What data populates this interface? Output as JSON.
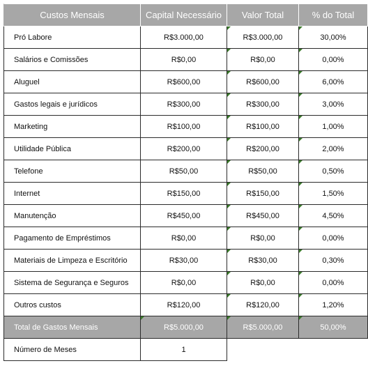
{
  "headers": [
    "Custos Mensais",
    "Capital Necessário",
    "Valor Total",
    "% do Total"
  ],
  "rows": [
    {
      "label": "Pró Labore",
      "capital": "R$3.000,00",
      "total": "R$3.000,00",
      "pct": "30,00%"
    },
    {
      "label": "Salários e Comissões",
      "capital": "R$0,00",
      "total": "R$0,00",
      "pct": "0,00%"
    },
    {
      "label": "Aluguel",
      "capital": "R$600,00",
      "total": "R$600,00",
      "pct": "6,00%"
    },
    {
      "label": "Gastos legais e jurídicos",
      "capital": "R$300,00",
      "total": "R$300,00",
      "pct": "3,00%"
    },
    {
      "label": "Marketing",
      "capital": "R$100,00",
      "total": "R$100,00",
      "pct": "1,00%"
    },
    {
      "label": "Utilidade Pública",
      "capital": "R$200,00",
      "total": "R$200,00",
      "pct": "2,00%"
    },
    {
      "label": "Telefone",
      "capital": "R$50,00",
      "total": "R$50,00",
      "pct": "0,50%"
    },
    {
      "label": "Internet",
      "capital": "R$150,00",
      "total": "R$150,00",
      "pct": "1,50%"
    },
    {
      "label": "Manutenção",
      "capital": "R$450,00",
      "total": "R$450,00",
      "pct": "4,50%"
    },
    {
      "label": "Pagamento de Empréstimos",
      "capital": "R$0,00",
      "total": "R$0,00",
      "pct": "0,00%"
    },
    {
      "label": "Materiais de Limpeza e Escritório",
      "capital": "R$30,00",
      "total": "R$30,00",
      "pct": "0,30%"
    },
    {
      "label": "Sistema de Segurança e Seguros",
      "capital": "R$0,00",
      "total": "R$0,00",
      "pct": "0,00%"
    },
    {
      "label": "Outros custos",
      "capital": "R$120,00",
      "total": "R$120,00",
      "pct": "1,20%"
    }
  ],
  "total_row": {
    "label": "Total de Gastos Mensais",
    "capital": "R$5.000,00",
    "total": "R$5.000,00",
    "pct": "50,00%"
  },
  "months_row": {
    "label": "Número de Meses",
    "value": "1"
  },
  "colors": {
    "header_bg": "#a7a7a7",
    "marker": "#3a7a2a"
  }
}
